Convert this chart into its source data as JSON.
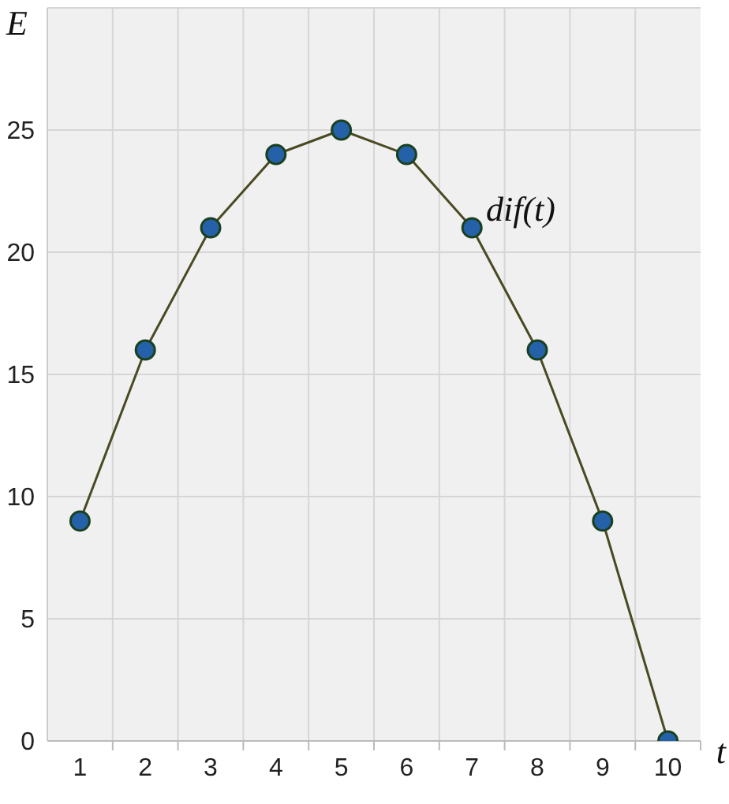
{
  "chart_data": {
    "type": "line",
    "xlabel": "t",
    "ylabel": "E",
    "categories": [
      "1",
      "2",
      "3",
      "4",
      "5",
      "6",
      "7",
      "8",
      "9",
      "10"
    ],
    "series": [
      {
        "color": "#4a4a22",
        "values": [
          9,
          16,
          21,
          24,
          25,
          24,
          21,
          16,
          9,
          0
        ]
      }
    ],
    "marker": "circle",
    "line_style": "solid",
    "ylim": [
      0,
      30
    ],
    "yticks": [
      0,
      5,
      10,
      15,
      20,
      25
    ],
    "grid": true,
    "annotations": [
      "dif(t)"
    ]
  }
}
